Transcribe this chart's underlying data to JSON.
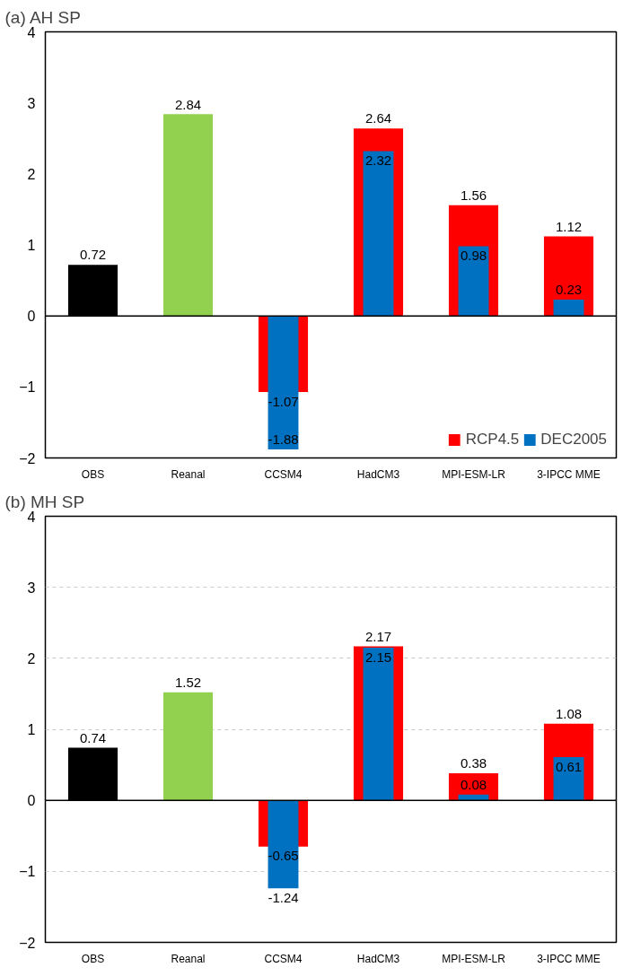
{
  "chart_data": [
    {
      "type": "bar",
      "title": "(a) AH SP",
      "categories": [
        "OBS",
        "Reanal",
        "CCSM4",
        "HadCM3",
        "MPI-ESM-LR",
        "3-IPCC MME"
      ],
      "ylim": [
        -2,
        4
      ],
      "yticks": [
        -2,
        -1,
        0,
        1,
        2,
        3,
        4
      ],
      "grid": false,
      "ref_lines": [
        {
          "axis": "y",
          "value": 0
        }
      ],
      "legend": "bottom right",
      "data_labels": true,
      "series": [
        {
          "colors": [
            "#000000",
            "#92d050",
            null,
            null,
            null,
            null
          ],
          "values": [
            0.72,
            2.84,
            null,
            null,
            null,
            null
          ]
        },
        {
          "name": "RCP4.5",
          "color": "#ff0000",
          "values": [
            null,
            null,
            -1.07,
            2.64,
            1.56,
            1.12
          ]
        },
        {
          "name": "DEC2005",
          "color": "#0070c0",
          "values": [
            null,
            null,
            -1.88,
            2.32,
            0.98,
            0.23
          ]
        }
      ]
    },
    {
      "type": "bar",
      "title": "(b) MH SP",
      "categories": [
        "OBS",
        "Reanal",
        "CCSM4",
        "HadCM3",
        "MPI-ESM-LR",
        "3-IPCC MME"
      ],
      "ylim": [
        -2,
        4
      ],
      "yticks": [
        -2,
        -1,
        0,
        1,
        2,
        3,
        4
      ],
      "grid": "y",
      "ref_lines": [
        {
          "axis": "y",
          "value": 0
        }
      ],
      "data_labels": true,
      "series": [
        {
          "colors": [
            "#000000",
            "#92d050",
            null,
            null,
            null,
            null
          ],
          "values": [
            0.74,
            1.52,
            null,
            null,
            null,
            null
          ]
        },
        {
          "color": "#ff0000",
          "values": [
            null,
            null,
            -0.65,
            2.17,
            0.38,
            1.08
          ]
        },
        {
          "color": "#0070c0",
          "values": [
            null,
            null,
            -1.24,
            2.15,
            0.08,
            0.61
          ]
        }
      ]
    }
  ]
}
